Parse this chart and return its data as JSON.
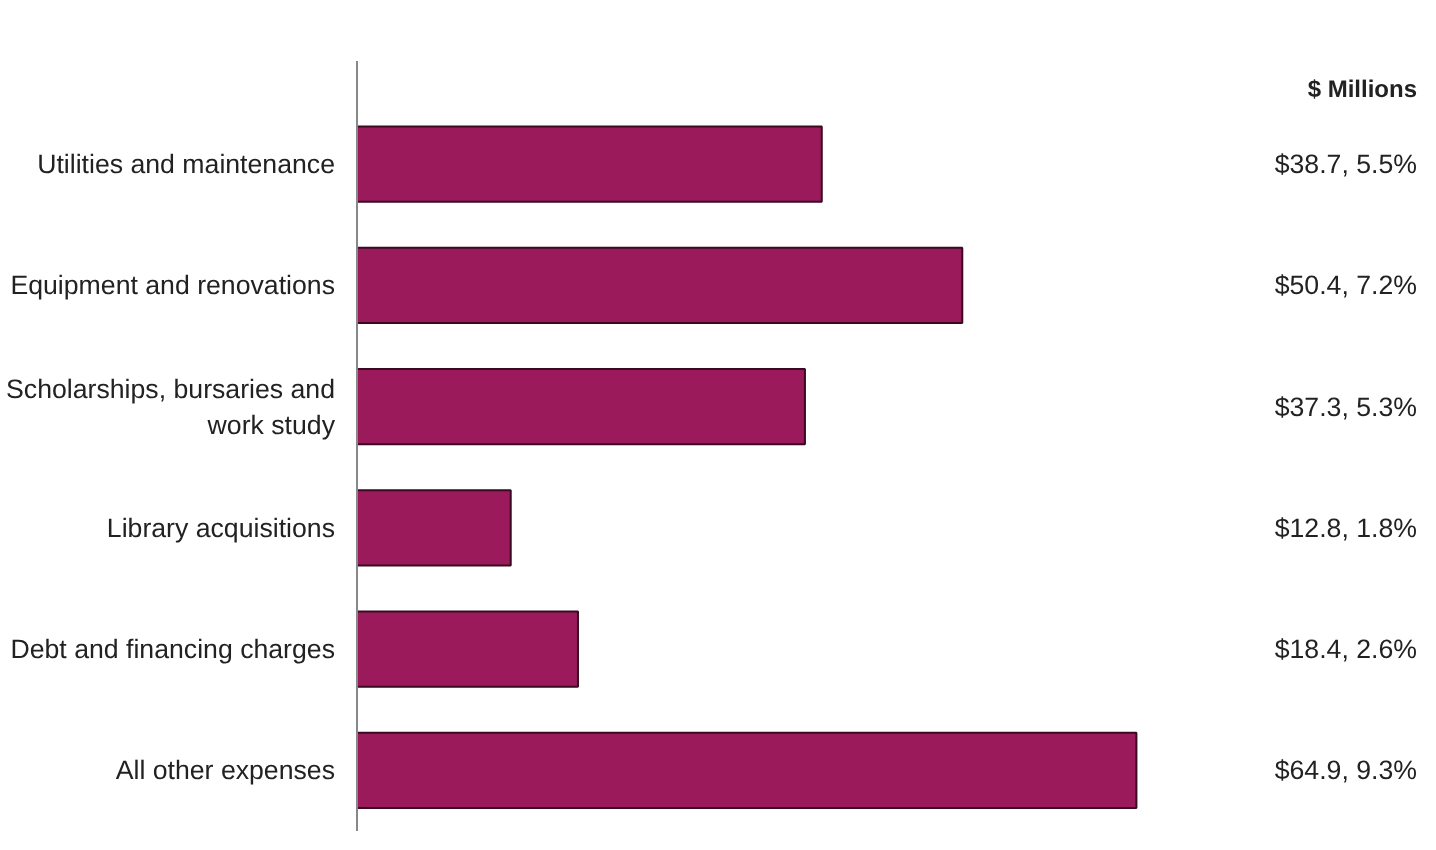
{
  "chart_data": {
    "type": "bar",
    "orientation": "horizontal",
    "categories": [
      "Utilities and maintenance",
      "Equipment and renovations",
      "Scholarships, bursaries and work study",
      "Library acquisitions",
      "Debt and financing charges",
      "All other expenses"
    ],
    "values": [
      38.7,
      50.4,
      37.3,
      12.8,
      18.4,
      64.9
    ],
    "value_labels": [
      "$38.7, 5.5%",
      "$50.4, 7.2%",
      "$37.3, 5.3%",
      "$12.8, 1.8%",
      "$18.4, 2.6%",
      "$64.9, 9.3%"
    ],
    "color": "#9a1a5c",
    "annotations": [
      "$ Millions"
    ]
  }
}
